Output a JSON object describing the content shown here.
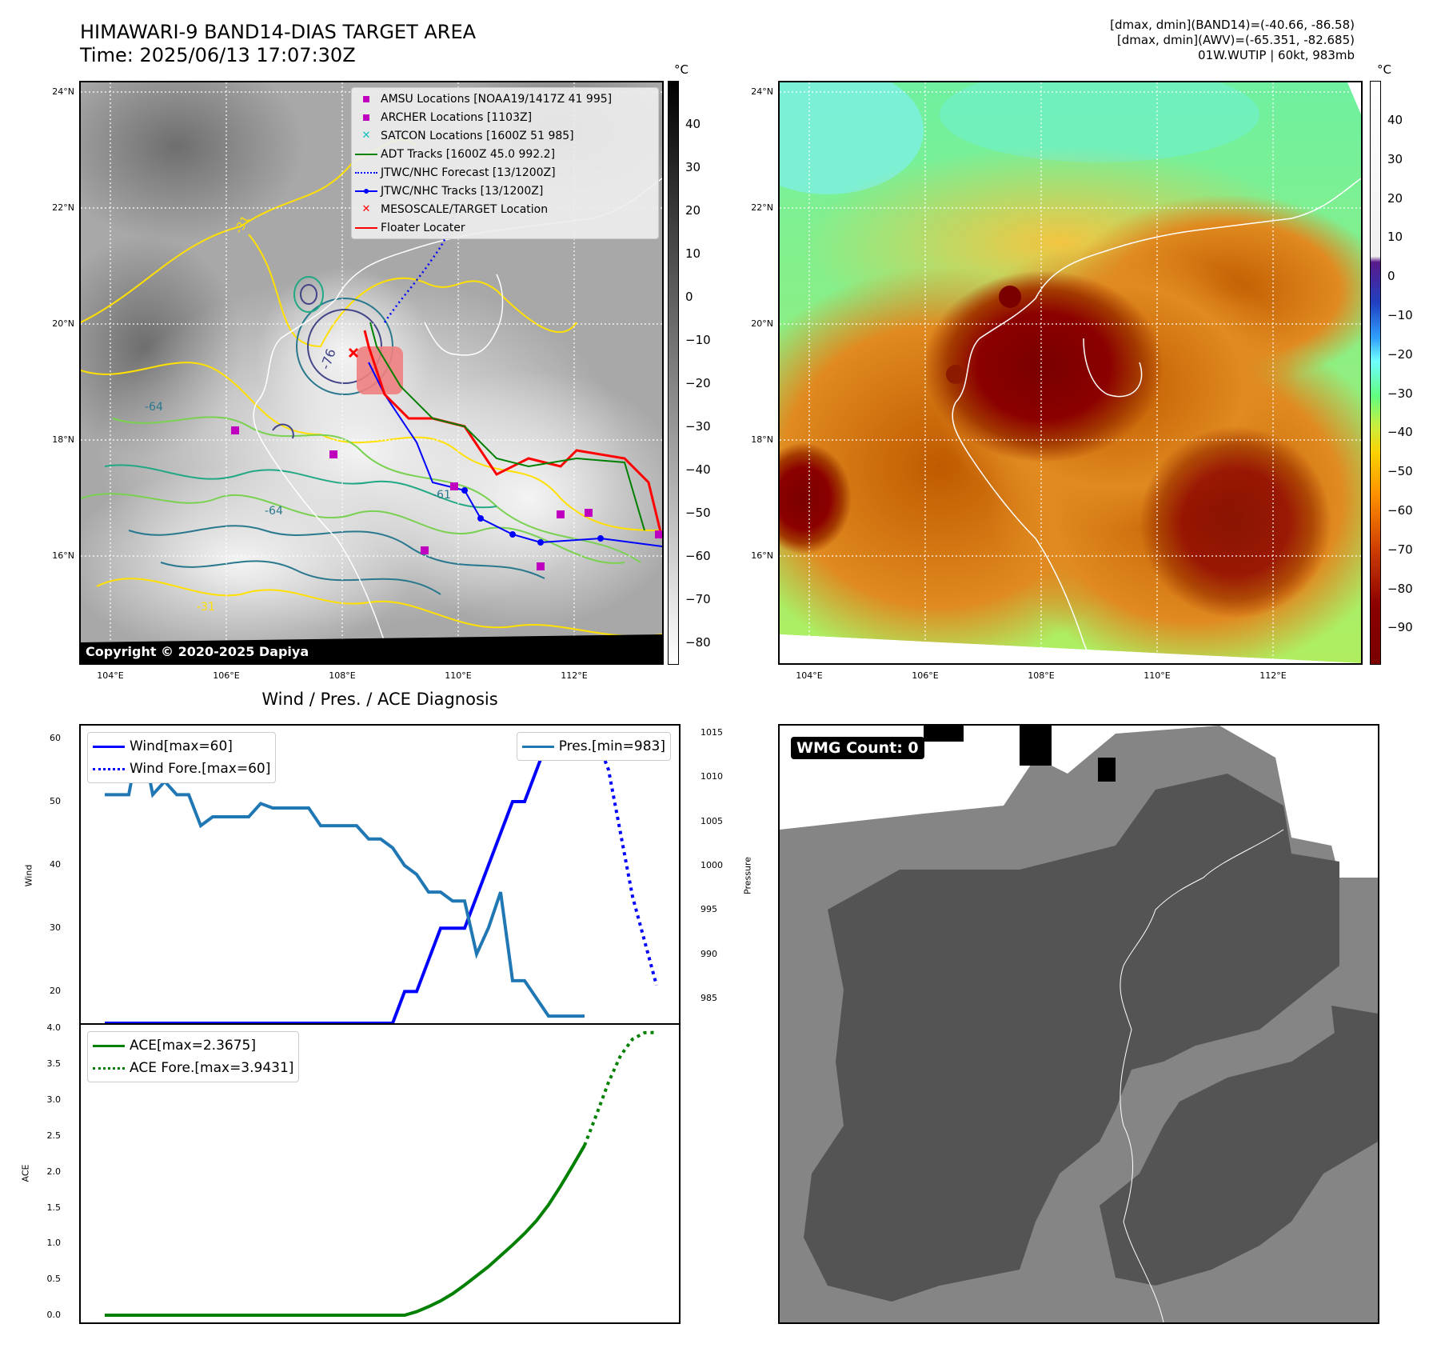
{
  "header": {
    "title_line1": "HIMAWARI-9 BAND14-DIAS TARGET AREA",
    "title_line2": "Time: 2025/06/13 17:07:30Z",
    "info_line1": "[dmax, dmin](BAND14)=(-40.66, -86.58)",
    "info_line2": "[dmax, dmin](AWV)=(-65.351, -82.685)",
    "info_line3": "01W.WUTIP | 60kt, 983mb"
  },
  "map": {
    "lat_labels": [
      "24°N",
      "22°N",
      "20°N",
      "18°N",
      "16°N"
    ],
    "lon_labels": [
      "104°E",
      "106°E",
      "108°E",
      "110°E",
      "112°E"
    ],
    "copyright": "Copyright © 2020-2025 Dapiya",
    "legend": [
      {
        "label": "AMSU Locations [NOAA19/1417Z 41 995]",
        "symbol": "square",
        "color": "#bf00bf"
      },
      {
        "label": "ARCHER Locations [1103Z]",
        "symbol": "square",
        "color": "#bf00bf"
      },
      {
        "label": "SATCON Locations [1600Z 51 985]",
        "symbol": "x",
        "color": "#00bfbf"
      },
      {
        "label": "ADT Tracks [1600Z 45.0 992.2]",
        "symbol": "line",
        "color": "#008000"
      },
      {
        "label": "JTWC/NHC Forecast [13/1200Z]",
        "symbol": "dotted",
        "color": "#0000ff"
      },
      {
        "label": "JTWC/NHC Tracks [13/1200Z]",
        "symbol": "linedot",
        "color": "#0000ff"
      },
      {
        "label": "MESOSCALE/TARGET Location",
        "symbol": "x",
        "color": "#ff0000"
      },
      {
        "label": "Floater Locater",
        "symbol": "line",
        "color": "#ff0000"
      }
    ],
    "contour_labels": [
      "-76",
      "-64",
      "-64",
      "-61",
      "-64",
      "-31",
      "-31",
      "-31",
      "-61",
      "-64"
    ]
  },
  "colorbar_left": {
    "unit": "°C",
    "ticks": [
      "40",
      "30",
      "20",
      "10",
      "0",
      "−10",
      "−20",
      "−30",
      "−40",
      "−50",
      "−60",
      "−70",
      "−80"
    ]
  },
  "colorbar_right": {
    "unit": "°C",
    "ticks": [
      "40",
      "30",
      "20",
      "10",
      "0",
      "−10",
      "−20",
      "−30",
      "−40",
      "−50",
      "−60",
      "−70",
      "−80",
      "−90"
    ]
  },
  "diagnosis": {
    "title": "Wind / Pres. / ACE Diagnosis",
    "wind_ylabel": "Wind",
    "pres_ylabel": "Pressure",
    "ace_ylabel": "ACE",
    "wmg_count": "WMG Count: 0"
  },
  "chart_data": [
    {
      "type": "line",
      "title": "Wind / Pres. / ACE Diagnosis",
      "ylabel": "Wind",
      "ylim": [
        15,
        62
      ],
      "yticks": [
        "20",
        "30",
        "40",
        "50",
        "60"
      ],
      "secondary_ylabel": "Pressure",
      "secondary_ylim": [
        982.2,
        1015.8
      ],
      "secondary_yticks": [
        "985",
        "990",
        "995",
        "1000",
        "1005",
        "1010",
        "1015"
      ],
      "series": [
        {
          "name": "Wind[max=60]",
          "axis": "left",
          "color": "#0000ff",
          "style": "solid",
          "x": [
            0,
            1,
            2,
            3,
            4,
            5,
            6,
            7,
            8,
            9,
            10,
            11,
            12,
            13,
            14,
            15,
            16,
            17,
            18,
            19,
            20,
            21,
            22,
            23,
            24,
            25,
            26,
            27,
            28,
            29,
            30,
            31,
            32,
            33,
            34,
            35,
            36,
            37,
            38,
            39,
            40
          ],
          "values": [
            15,
            15,
            15,
            15,
            15,
            15,
            15,
            15,
            15,
            15,
            15,
            15,
            15,
            15,
            15,
            15,
            15,
            15,
            15,
            15,
            15,
            15,
            15,
            15,
            15,
            20,
            20,
            25,
            30,
            30,
            30,
            35,
            40,
            45,
            50,
            50,
            55,
            60,
            60,
            60,
            60
          ]
        },
        {
          "name": "Wind Fore.[max=60]",
          "axis": "left",
          "color": "#0000ff",
          "style": "dotted",
          "x": [
            40,
            41,
            42,
            43,
            44,
            45,
            46
          ],
          "values": [
            60,
            60,
            55,
            45,
            35,
            28,
            21
          ]
        },
        {
          "name": "Pres.[min=983]",
          "axis": "right",
          "color": "#1f77b4",
          "style": "solid",
          "x": [
            0,
            1,
            2,
            3,
            4,
            5,
            6,
            7,
            8,
            9,
            10,
            11,
            12,
            13,
            14,
            15,
            16,
            17,
            18,
            19,
            20,
            21,
            22,
            23,
            24,
            25,
            26,
            27,
            28,
            29,
            30,
            31,
            32,
            33,
            34,
            35,
            36,
            37,
            38,
            39,
            40
          ],
          "values": [
            1008,
            1008,
            1008,
            1015,
            1008,
            1009.5,
            1008,
            1008,
            1004.5,
            1005.5,
            1005.5,
            1005.5,
            1005.5,
            1007,
            1006.5,
            1006.5,
            1006.5,
            1006.5,
            1004.5,
            1004.5,
            1004.5,
            1004.5,
            1003,
            1003,
            1002,
            1000,
            999,
            997,
            997,
            996,
            996,
            990,
            993,
            997,
            987,
            987,
            985,
            983,
            983,
            983,
            983
          ]
        }
      ]
    },
    {
      "type": "line",
      "ylabel": "ACE",
      "ylim": [
        -0.1,
        4.05
      ],
      "yticks": [
        "0.0",
        "0.5",
        "1.0",
        "1.5",
        "2.0",
        "2.5",
        "3.0",
        "3.5",
        "4.0"
      ],
      "series": [
        {
          "name": "ACE[max=2.3675]",
          "color": "#008000",
          "style": "solid",
          "x": [
            0,
            25,
            26,
            27,
            28,
            29,
            30,
            31,
            32,
            33,
            34,
            35,
            36,
            37,
            38,
            39,
            40
          ],
          "values": [
            0,
            0,
            0.05,
            0.12,
            0.2,
            0.3,
            0.42,
            0.55,
            0.68,
            0.83,
            0.98,
            1.14,
            1.32,
            1.54,
            1.8,
            2.08,
            2.3675
          ]
        },
        {
          "name": "ACE Fore.[max=3.9431]",
          "color": "#008000",
          "style": "dotted",
          "x": [
            40,
            41,
            42,
            43,
            44,
            45,
            46
          ],
          "values": [
            2.3675,
            2.8,
            3.25,
            3.62,
            3.85,
            3.94,
            3.9431
          ]
        }
      ]
    }
  ]
}
